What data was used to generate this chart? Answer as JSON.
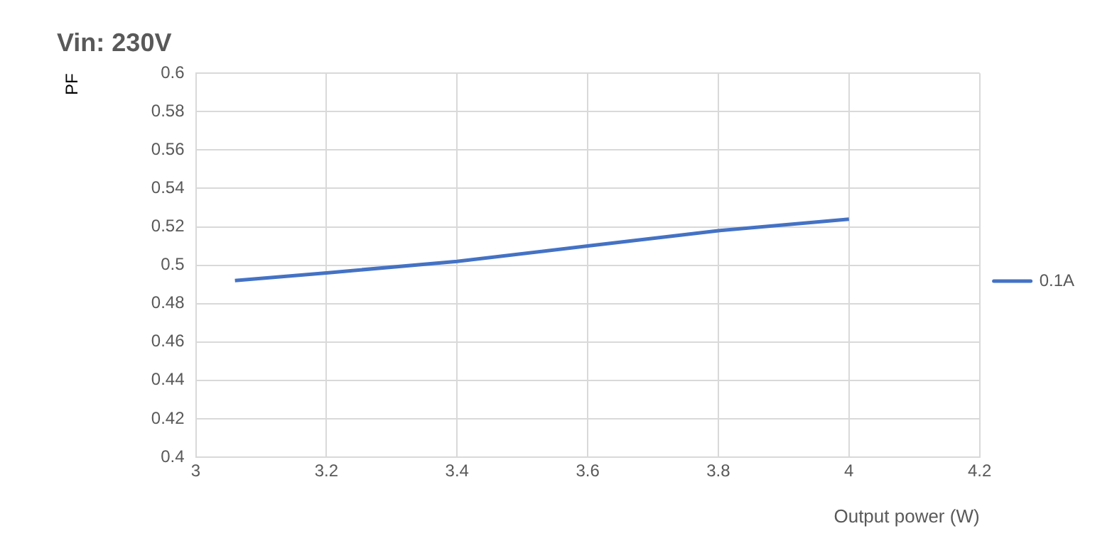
{
  "chart_data": {
    "type": "line",
    "title": "Vin: 230V",
    "xlabel": "Output power (W)",
    "ylabel": "PF",
    "x": [
      3.06,
      3.2,
      3.4,
      3.6,
      3.8,
      4.0
    ],
    "series": [
      {
        "name": "0.1A",
        "color": "#4472c4",
        "values": [
          0.492,
          0.496,
          0.502,
          0.51,
          0.518,
          0.524
        ]
      }
    ],
    "xlim": [
      3,
      4.2
    ],
    "xticks": [
      3,
      3.2,
      3.4,
      3.6,
      3.8,
      4,
      4.2
    ],
    "ylim": [
      0.4,
      0.6
    ],
    "yticks": [
      0.4,
      0.42,
      0.44,
      0.46,
      0.48,
      0.5,
      0.52,
      0.54,
      0.56,
      0.58,
      0.6
    ],
    "grid": true,
    "legend": "right",
    "marker": "none",
    "line_style": "solid"
  }
}
